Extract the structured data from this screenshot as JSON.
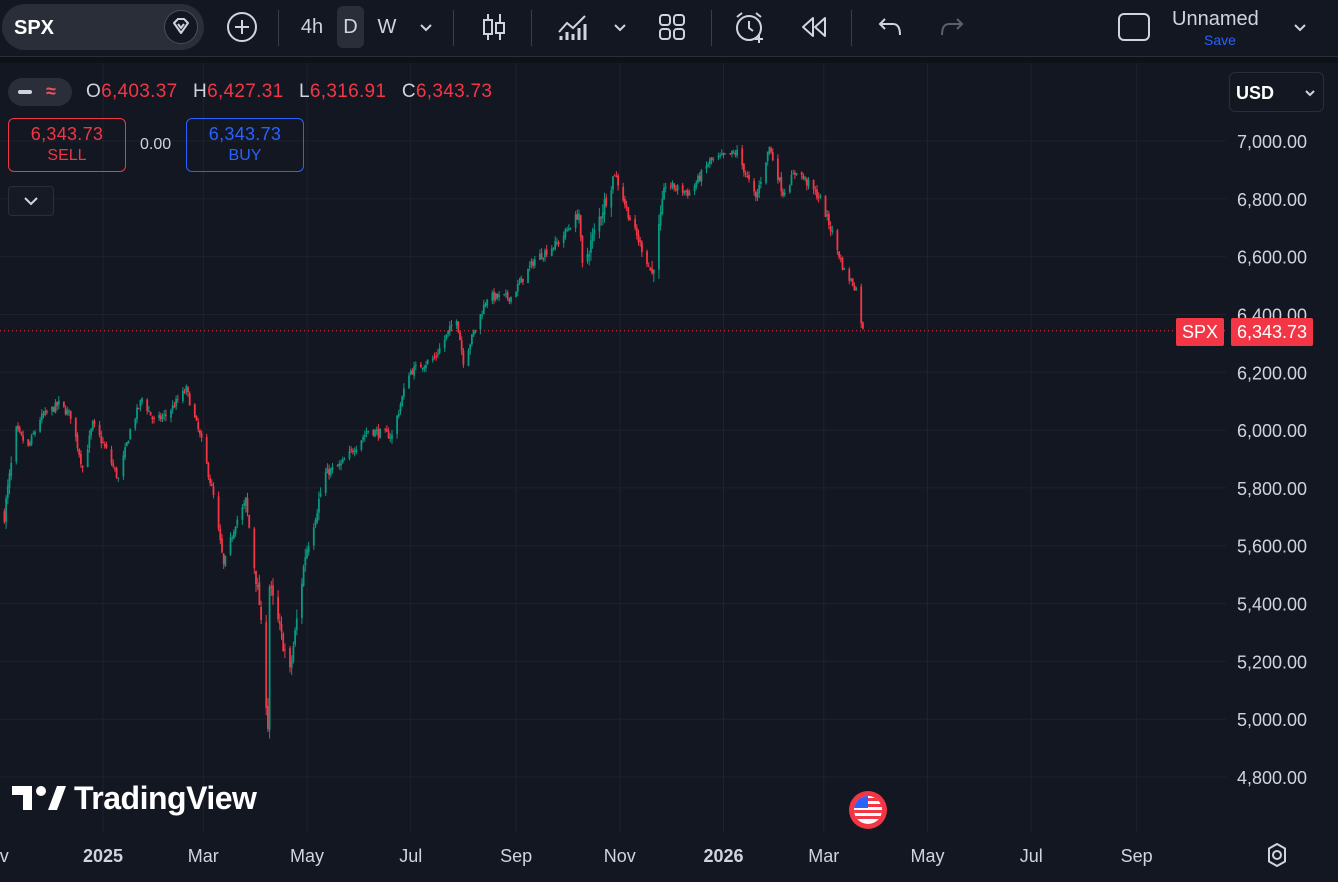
{
  "toolbar": {
    "symbol": "SPX",
    "intervals": [
      "4h",
      "D",
      "W"
    ],
    "active_interval": "D",
    "layout_name": "Unnamed",
    "save_label": "Save"
  },
  "legend": {
    "open_key": "O",
    "open": "6,403.37",
    "high_key": "H",
    "high": "6,427.31",
    "low_key": "L",
    "low": "6,316.91",
    "close_key": "C",
    "close": "6,343.73"
  },
  "trade": {
    "sell_price": "6,343.73",
    "sell_label": "SELL",
    "spread": "0.00",
    "buy_price": "6,343.73",
    "buy_label": "BUY"
  },
  "currency": "USD",
  "price_tag": {
    "symbol": "SPX",
    "price": "6,343.73"
  },
  "brand": "TradingView",
  "colors": {
    "up": "#089981",
    "down": "#f23645",
    "background": "#131722",
    "accent": "#2962ff"
  },
  "chart_data": {
    "type": "candlestick",
    "y_axis_labels": [
      "7,000.00",
      "6,800.00",
      "6,600.00",
      "6,400.00",
      "6,200.00",
      "6,000.00",
      "5,800.00",
      "5,600.00",
      "5,400.00",
      "5,200.00",
      "5,000.00",
      "4,800.00"
    ],
    "ylim": [
      4750,
      7120
    ],
    "x_axis_labels": [
      "ov",
      "2025",
      "Mar",
      "May",
      "Jul",
      "Sep",
      "Nov",
      "2026",
      "Mar",
      "May",
      "Jul",
      "Sep"
    ],
    "last_price": 6343.73,
    "anchors": [
      [
        "2024-11-04",
        5710
      ],
      [
        "2024-11-11",
        6000
      ],
      [
        "2024-11-18",
        5940
      ],
      [
        "2024-11-25",
        6040
      ],
      [
        "2024-12-06",
        6090
      ],
      [
        "2024-12-13",
        6050
      ],
      [
        "2024-12-20",
        5870
      ],
      [
        "2024-12-26",
        6020
      ],
      [
        "2025-01-03",
        5930
      ],
      [
        "2025-01-10",
        5830
      ],
      [
        "2025-01-17",
        6000
      ],
      [
        "2025-01-24",
        6110
      ],
      [
        "2025-01-31",
        6030
      ],
      [
        "2025-02-07",
        6050
      ],
      [
        "2025-02-19",
        6140
      ],
      [
        "2025-02-28",
        5960
      ],
      [
        "2025-03-07",
        5770
      ],
      [
        "2025-03-13",
        5530
      ],
      [
        "2025-03-20",
        5680
      ],
      [
        "2025-03-26",
        5750
      ],
      [
        "2025-04-03",
        5400
      ],
      [
        "2025-04-08",
        4980
      ],
      [
        "2025-04-09",
        5460
      ],
      [
        "2025-04-21",
        5160
      ],
      [
        "2025-04-30",
        5570
      ],
      [
        "2025-05-12",
        5850
      ],
      [
        "2025-05-21",
        5880
      ],
      [
        "2025-06-06",
        6000
      ],
      [
        "2025-06-20",
        5980
      ],
      [
        "2025-06-30",
        6200
      ],
      [
        "2025-07-15",
        6250
      ],
      [
        "2025-07-28",
        6390
      ],
      [
        "2025-08-01",
        6240
      ],
      [
        "2025-08-15",
        6460
      ],
      [
        "2025-08-29",
        6460
      ],
      [
        "2025-09-12",
        6590
      ],
      [
        "2025-09-26",
        6650
      ],
      [
        "2025-10-08",
        6750
      ],
      [
        "2025-10-10",
        6560
      ],
      [
        "2025-10-29",
        6890
      ],
      [
        "2025-11-07",
        6730
      ],
      [
        "2025-11-20",
        6540
      ],
      [
        "2025-11-28",
        6850
      ],
      [
        "2025-12-12",
        6820
      ],
      [
        "2025-12-24",
        6930
      ],
      [
        "2026-01-09",
        6960
      ],
      [
        "2026-01-20",
        6800
      ],
      [
        "2026-01-28",
        6980
      ],
      [
        "2026-02-05",
        6820
      ],
      [
        "2026-02-13",
        6900
      ],
      [
        "2026-02-27",
        6800
      ],
      [
        "2026-03-06",
        6680
      ],
      [
        "2026-03-13",
        6550
      ],
      [
        "2026-03-20",
        6490
      ],
      [
        "2026-03-24",
        6343.73
      ]
    ]
  }
}
